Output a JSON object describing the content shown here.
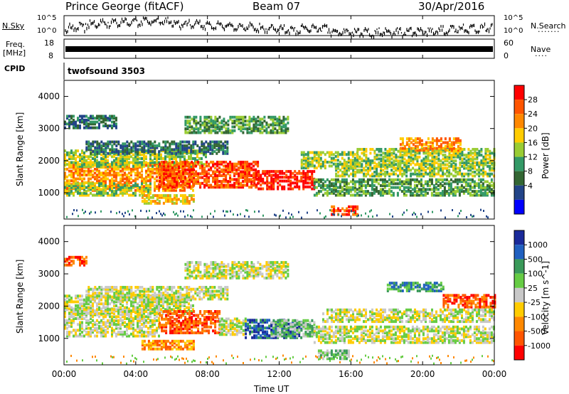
{
  "header": {
    "station": "Prince George (fitACF)",
    "beam": "Beam 07",
    "date": "30/Apr/2016"
  },
  "top_panel_labels": {
    "nsky": "N.Sky",
    "nsearch": "N.Search",
    "freq_line1": "Freq.",
    "freq_line2": "[MHz]",
    "nave": "Nave",
    "cpid": "CPID",
    "cpid_value": "twofsound 3503",
    "nsky_ticks": [
      "10^5",
      "10^0"
    ],
    "nsearch_ticks": [
      "10^5",
      "10^0"
    ],
    "freq_ticks": [
      "18",
      "8"
    ],
    "nave_ticks": [
      "60",
      "0"
    ]
  },
  "chart_data": [
    {
      "type": "heatmap",
      "quantity": "Power",
      "ylabel": "Slant Range [km]",
      "colorbar_label": "Power [dB]",
      "colorbar_ticks": [
        "28",
        "24",
        "20",
        "16",
        "12",
        "8",
        "4"
      ],
      "colorbar_colors": [
        "#ff0000",
        "#ff5500",
        "#ff8800",
        "#ffcc00",
        "#99cc33",
        "#339966",
        "#336633",
        "#224488",
        "#0000ff"
      ],
      "ylim": [
        180,
        4500
      ],
      "yticks": [
        "4000",
        "3000",
        "2000",
        "1000"
      ],
      "ytick_values": [
        4000,
        3000,
        2000,
        1000
      ]
    },
    {
      "type": "heatmap",
      "quantity": "Velocity",
      "ylabel": "Slant Range [km]",
      "colorbar_label": "Velocity [m s^-1]",
      "colorbar_ticks": [
        "1000",
        "500",
        "100",
        "25",
        "-25",
        "-100",
        "-500",
        "-1000"
      ],
      "colorbar_colors": [
        "#1a2a9a",
        "#2060c0",
        "#3a9a5a",
        "#66cc44",
        "#c8c8c8",
        "#ffcc00",
        "#ff8800",
        "#ff5500",
        "#ff0000"
      ],
      "ylim": [
        180,
        4500
      ],
      "yticks": [
        "4000",
        "3000",
        "2000",
        "1000"
      ],
      "ytick_values": [
        4000,
        3000,
        2000,
        1000
      ]
    }
  ],
  "xaxis": {
    "label": "Time UT",
    "ticks": [
      "00:00",
      "04:00",
      "08:00",
      "12:00",
      "16:00",
      "20:00",
      "00:00"
    ]
  }
}
